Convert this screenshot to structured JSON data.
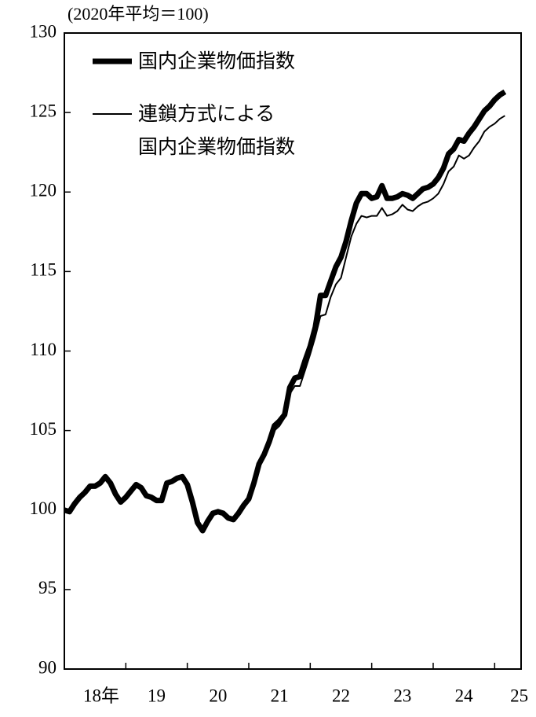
{
  "chart_data": {
    "type": "line",
    "annotation": "(2020年平均＝100)",
    "x": [
      2018,
      2018.083,
      2018.167,
      2018.25,
      2018.333,
      2018.417,
      2018.5,
      2018.583,
      2018.667,
      2018.75,
      2018.833,
      2018.917,
      2019,
      2019.083,
      2019.167,
      2019.25,
      2019.333,
      2019.417,
      2019.5,
      2019.583,
      2019.667,
      2019.75,
      2019.833,
      2019.917,
      2020,
      2020.083,
      2020.167,
      2020.25,
      2020.333,
      2020.417,
      2020.5,
      2020.583,
      2020.667,
      2020.75,
      2020.833,
      2020.917,
      2021,
      2021.083,
      2021.167,
      2021.25,
      2021.333,
      2021.417,
      2021.5,
      2021.583,
      2021.667,
      2021.75,
      2021.833,
      2021.917,
      2022,
      2022.083,
      2022.167,
      2022.25,
      2022.333,
      2022.417,
      2022.5,
      2022.583,
      2022.667,
      2022.75,
      2022.833,
      2022.917,
      2023,
      2023.083,
      2023.167,
      2023.25,
      2023.333,
      2023.417,
      2023.5,
      2023.583,
      2023.667,
      2023.75,
      2023.833,
      2023.917,
      2024,
      2024.083,
      2024.167,
      2024.25,
      2024.333,
      2024.417,
      2024.5,
      2024.583,
      2024.667,
      2024.75,
      2024.833,
      2024.917,
      2025,
      2025.083,
      2025.167
    ],
    "series": [
      {
        "name": "国内企業物価指数",
        "color": "#000000",
        "width": 7,
        "values": [
          100,
          99.9,
          100.4,
          100.8,
          101.1,
          101.5,
          101.5,
          101.7,
          102.1,
          101.7,
          101.0,
          100.5,
          100.8,
          101.2,
          101.6,
          101.4,
          100.9,
          100.8,
          100.6,
          100.6,
          101.7,
          101.8,
          102.0,
          102.1,
          101.6,
          100.5,
          99.2,
          98.7,
          99.3,
          99.8,
          99.9,
          99.8,
          99.5,
          99.4,
          99.8,
          100.3,
          100.7,
          101.7,
          102.9,
          103.5,
          104.3,
          105.3,
          105.6,
          106.0,
          107.7,
          108.3,
          108.4,
          109.4,
          110.3,
          111.5,
          113.5,
          113.5,
          114.4,
          115.3,
          115.9,
          116.9,
          118.2,
          119.3,
          119.9,
          119.9,
          119.6,
          119.7,
          120.4,
          119.6,
          119.6,
          119.7,
          119.9,
          119.8,
          119.6,
          119.9,
          120.2,
          120.3,
          120.5,
          120.9,
          121.5,
          122.4,
          122.7,
          123.3,
          123.2,
          123.7,
          124.1,
          124.6,
          125.1,
          125.4,
          125.8,
          126.1,
          126.3
        ]
      },
      {
        "name": "連鎖方式による\n国内企業物価指数",
        "color": "#000000",
        "width": 2,
        "values": [
          100,
          99.9,
          100.4,
          100.8,
          101.1,
          101.5,
          101.5,
          101.7,
          102.1,
          101.7,
          101.0,
          100.5,
          100.8,
          101.2,
          101.6,
          101.4,
          100.9,
          100.8,
          100.6,
          100.6,
          101.7,
          101.8,
          102.0,
          102.1,
          101.6,
          100.5,
          99.2,
          98.7,
          99.3,
          99.8,
          99.9,
          99.8,
          99.5,
          99.4,
          99.8,
          100.3,
          100.7,
          101.7,
          102.8,
          103.4,
          104.2,
          105.0,
          105.3,
          105.8,
          107.3,
          107.8,
          107.8,
          108.8,
          109.8,
          110.9,
          112.2,
          112.3,
          113.4,
          114.2,
          114.6,
          115.9,
          117.2,
          118.0,
          118.5,
          118.4,
          118.5,
          118.5,
          119.0,
          118.5,
          118.6,
          118.8,
          119.2,
          118.9,
          118.8,
          119.1,
          119.3,
          119.4,
          119.6,
          119.9,
          120.5,
          121.3,
          121.6,
          122.3,
          122.1,
          122.3,
          122.8,
          123.2,
          123.8,
          124.1,
          124.3,
          124.6,
          124.8
        ]
      }
    ],
    "xlim": [
      2018,
      2025.43
    ],
    "xticks": [
      2019,
      2020,
      2021,
      2022,
      2023,
      2024,
      2025
    ],
    "xlabels": [
      {
        "value": 2018.6,
        "label": "18年"
      },
      {
        "value": 2019.5,
        "label": "19"
      },
      {
        "value": 2020.5,
        "label": "20"
      },
      {
        "value": 2021.5,
        "label": "21"
      },
      {
        "value": 2022.5,
        "label": "22"
      },
      {
        "value": 2023.5,
        "label": "23"
      },
      {
        "value": 2024.5,
        "label": "24"
      },
      {
        "value": 2025.4,
        "label": "25"
      }
    ],
    "ylim": [
      90,
      130
    ],
    "yticks": [
      90,
      95,
      100,
      105,
      110,
      115,
      120,
      125,
      130
    ],
    "grid": false
  }
}
